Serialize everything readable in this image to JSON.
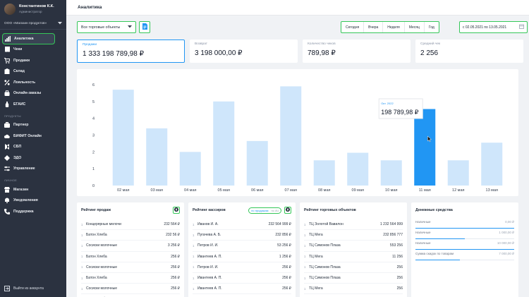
{
  "user": {
    "name": "Константинов К.К.",
    "role": "Администратор"
  },
  "org": {
    "name": "ООО «Магазин продуктов»"
  },
  "nav": {
    "main": [
      {
        "label": "Аналитика",
        "icon": "chart-icon",
        "active": true
      },
      {
        "label": "Чеки",
        "icon": "receipt-icon"
      },
      {
        "label": "Продажи",
        "icon": "cart-icon"
      },
      {
        "label": "Склад",
        "icon": "box-icon"
      },
      {
        "label": "Лояльность",
        "icon": "percent-icon"
      },
      {
        "label": "Онлайн-заказы",
        "icon": "bag-icon"
      },
      {
        "label": "ЕГАИС",
        "icon": "bottle-icon"
      }
    ],
    "products_title": "ПРОДУКТЫ",
    "products": [
      {
        "label": "Партнер",
        "icon": "briefcase-icon"
      },
      {
        "label": "БИФИТ Онлайн",
        "icon": "cloud-icon"
      },
      {
        "label": "СБП",
        "icon": "sbp-icon"
      },
      {
        "label": "ЭДО",
        "icon": "edo-icon"
      },
      {
        "label": "Управление",
        "icon": "sliders-icon"
      }
    ],
    "personal_title": "ЛИЧНОЕ",
    "personal": [
      {
        "label": "Магазин",
        "icon": "store-icon"
      },
      {
        "label": "Уведомления",
        "icon": "bell-icon"
      },
      {
        "label": "Поддержка",
        "icon": "phone-icon"
      }
    ],
    "logout": "Выйти из аккаунта"
  },
  "header": {
    "title": "Аналитика"
  },
  "filters": {
    "store_select": "Все торговые объекты",
    "periods": [
      "Сегодня",
      "Вчера",
      "Неделя",
      "Месяц",
      "Год"
    ],
    "date_range": "с 02.05.2021 по 13.05.2021"
  },
  "kpis": [
    {
      "label": "Продажи",
      "value": "1 333 198 789,98 ₽",
      "selected": true
    },
    {
      "label": "Возврат",
      "value": "3 198 000,00 ₽"
    },
    {
      "label": "Количество чеков",
      "value": "789,98 ₽"
    },
    {
      "label": "Средний чек",
      "value": "2 256"
    }
  ],
  "chart_data": {
    "type": "bar",
    "categories": [
      "02 мая",
      "03 мая",
      "04 мая",
      "05 мая",
      "06 мая",
      "07 мая",
      "08 мая",
      "09 мая",
      "10 мая",
      "11 мая",
      "12 мая",
      "13 мая"
    ],
    "values": [
      5.7,
      3.4,
      2.0,
      5.0,
      2.65,
      5.9,
      1.5,
      1.95,
      1.5,
      4.55,
      1.5,
      2.55
    ],
    "ylim": [
      0,
      6
    ],
    "yticks": [
      0,
      1,
      2,
      3,
      4,
      5,
      6
    ],
    "highlight_index": 9,
    "colors": {
      "bar": "#cfe6fb",
      "highlight": "#2196f3"
    },
    "tooltip": {
      "label": "Окт. 2022",
      "value": "198 789,98 ₽"
    }
  },
  "panels": {
    "sales_rating": {
      "title": "Рейтинг продаж",
      "rows": [
        {
          "n": "1",
          "name": "Концерярные мелочи",
          "value": "232 564 ₽"
        },
        {
          "n": "1",
          "name": "Батон Хлеба",
          "value": "232 56 ₽"
        },
        {
          "n": "1",
          "name": "Сосиски молочные",
          "value": "3 256 ₽"
        },
        {
          "n": "1",
          "name": "Батон Хлеба",
          "value": "256 ₽"
        },
        {
          "n": "1",
          "name": "Сосиски молочные",
          "value": "256 ₽"
        },
        {
          "n": "1",
          "name": "Батон Хлеба",
          "value": "256 ₽"
        },
        {
          "n": "1",
          "name": "Сосиски молочные",
          "value": "256 ₽"
        },
        {
          "n": "1",
          "name": "Батон Хлеба",
          "value": "256 ₽"
        }
      ]
    },
    "cashier_rating": {
      "title": "Рейтинг кассиров",
      "toggle_on": "по продажам",
      "toggle_off": "по АЧ",
      "rows": [
        {
          "n": "1",
          "name": "Иванов И. А.",
          "value": "232 564 999 ₽"
        },
        {
          "n": "1",
          "name": "Пугачева А. Б.",
          "value": "232 856 ₽"
        },
        {
          "n": "1",
          "name": "Петров И. И.",
          "value": "53 256 ₽"
        },
        {
          "n": "1",
          "name": "Ивантеев А. П.",
          "value": "1 256 ₽"
        },
        {
          "n": "1",
          "name": "Петров И. И.",
          "value": "256 ₽"
        },
        {
          "n": "1",
          "name": "Ивантеев А. П.",
          "value": "256 ₽"
        },
        {
          "n": "1",
          "name": "Ивантеев А. П.",
          "value": "256 ₽"
        },
        {
          "n": "1",
          "name": "Петров И. И.",
          "value": "256 ₽"
        }
      ]
    },
    "store_rating": {
      "title": "Рейтинг торговых объектов",
      "rows": [
        {
          "n": "1",
          "name": "ТЦ Золотой Вавилон",
          "value": "1 232 564 999"
        },
        {
          "n": "1",
          "name": "ТЦ Мега",
          "value": "232 856 777"
        },
        {
          "n": "1",
          "name": "ТЦ Симонов Плаза",
          "value": "553 256"
        },
        {
          "n": "1",
          "name": "ТЦ Мега",
          "value": "11 256"
        },
        {
          "n": "1",
          "name": "ТЦ Симонов Плаза",
          "value": "256"
        },
        {
          "n": "1",
          "name": "ТЦ Симонов Плаза",
          "value": "256"
        },
        {
          "n": "1",
          "name": "ТЦ Мега",
          "value": "256"
        },
        {
          "n": "1",
          "name": "ТЦ Мега",
          "value": "256"
        }
      ]
    },
    "cash": {
      "title": "Денежные средства",
      "items": [
        {
          "label": "Наличные",
          "value": "0,00 ₽",
          "fill": 1.0
        },
        {
          "label": "Наличные",
          "value": "1 000,00 ₽",
          "fill": 0.5
        },
        {
          "label": "Наличные",
          "value": "10 000,00 ₽",
          "fill": 1.0
        },
        {
          "label": "Сумма скидок по товарам",
          "value": "7 000,00 ₽",
          "fill": 0.45
        }
      ]
    }
  }
}
